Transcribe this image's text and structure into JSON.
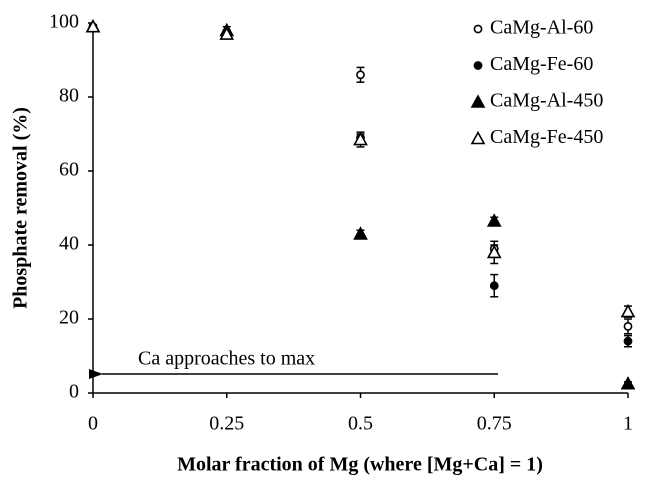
{
  "chart_data": {
    "type": "scatter",
    "x_label": "Molar fraction of Mg (where [Mg+Ca] = 1)",
    "y_label": "Phosphate removal (%)",
    "annotation": "Ca approaches to max",
    "x": [
      0,
      0.25,
      0.5,
      0.75,
      1
    ],
    "series": [
      {
        "name": "CaMg-Al-60",
        "color": "#000000",
        "marker": "circle",
        "filled": false,
        "values": [
          99,
          97,
          86,
          39,
          18
        ],
        "errors": [
          0.5,
          1,
          2,
          1,
          2
        ]
      },
      {
        "name": "CaMg-Fe-60",
        "color": "#000000",
        "marker": "circle",
        "filled": true,
        "values": [
          99,
          97,
          69,
          29,
          14
        ],
        "errors": [
          0.5,
          1,
          1,
          3,
          1.5
        ]
      },
      {
        "name": "CaMg-Al-450",
        "color": "#000000",
        "marker": "triangle",
        "filled": true,
        "values": [
          99,
          98,
          43,
          46.5,
          2.5
        ],
        "errors": [
          0.5,
          1,
          1,
          1,
          0.5
        ]
      },
      {
        "name": "CaMg-Fe-450",
        "color": "#000000",
        "marker": "triangle",
        "filled": false,
        "values": [
          99,
          97,
          68.5,
          38,
          22
        ],
        "errors": [
          0.5,
          1,
          2,
          3,
          1.5
        ]
      }
    ],
    "xlim": [
      0,
      1
    ],
    "xticks": [
      0,
      0.25,
      0.5,
      0.75,
      1
    ],
    "ylim": [
      0,
      100
    ],
    "yticks": [
      0,
      20,
      40,
      60,
      80,
      100
    ],
    "grid": false,
    "legend": "top-right"
  }
}
